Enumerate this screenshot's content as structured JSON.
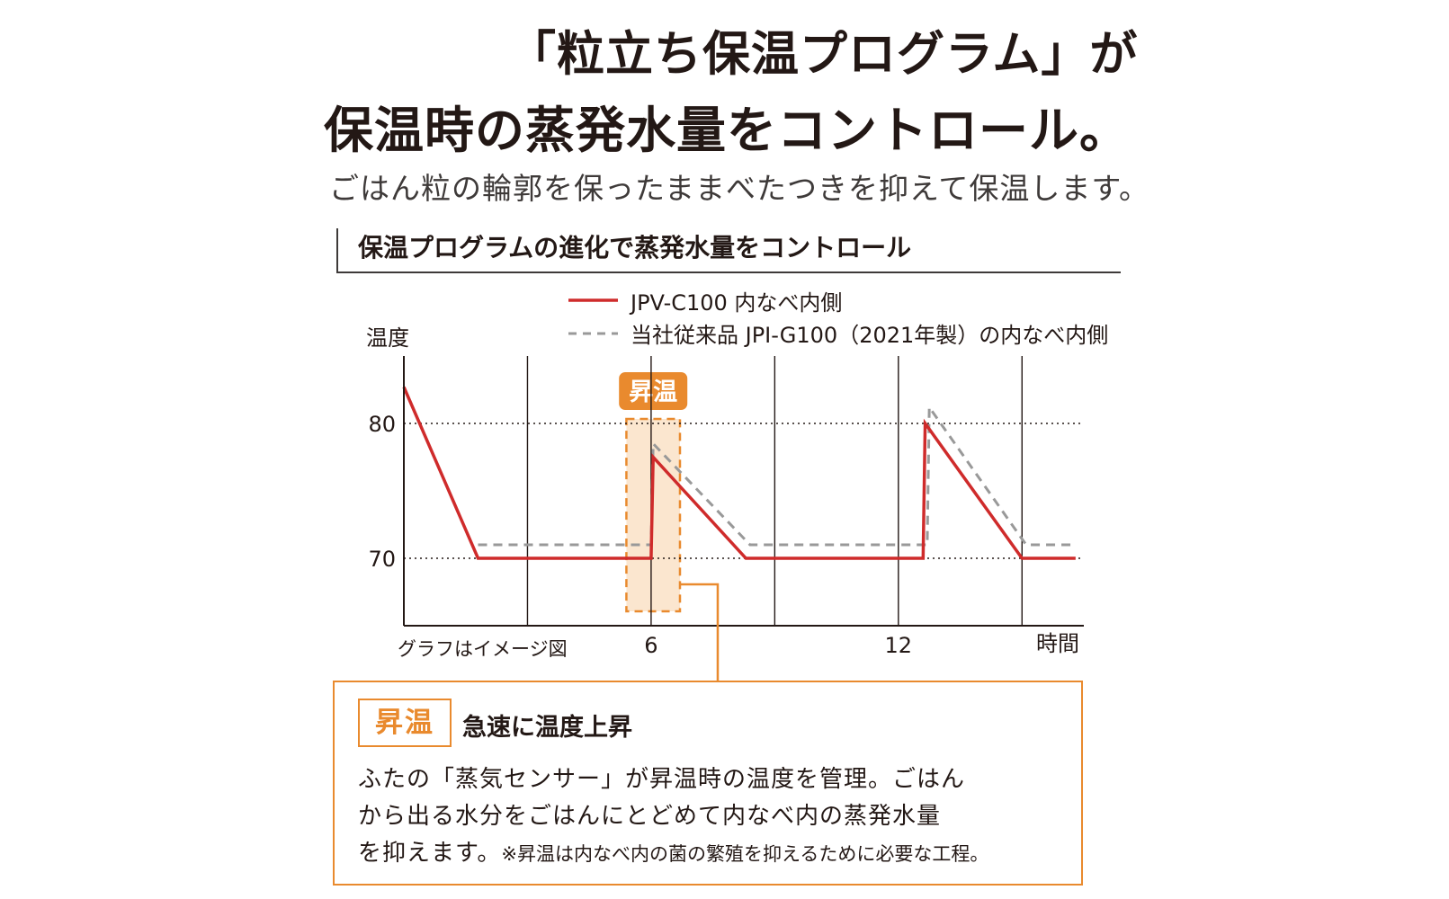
{
  "headline": {
    "line1": "「粒立ち保温プログラム」が",
    "line2": "保温時の蒸発水量をコントロール。"
  },
  "subheadline": "ごはん粒の輪郭を保ったままべたつきを抑えて保温します。",
  "section_heading": "保温プログラムの進化で蒸発水量をコントロール",
  "chart_data": {
    "type": "line",
    "ylabel": "温度",
    "xlabel": "時間",
    "note": "グラフはイメージ図",
    "yticks": [
      70,
      80
    ],
    "xticks": [
      6,
      12
    ],
    "ylim": [
      65,
      85
    ],
    "xlim": [
      0,
      16.5
    ],
    "grid_x": [
      3,
      6,
      9,
      12,
      15
    ],
    "horizontal_ref_lines": [
      70,
      80
    ],
    "highlight": {
      "label": "昇温",
      "x_start": 5.4,
      "x_end": 6.7
    },
    "series": [
      {
        "name": "JPV-C100 内なべ内側",
        "style": "solid",
        "color": "#cf2b2b",
        "x": [
          0,
          1.8,
          6.0,
          6.05,
          8.3,
          12.6,
          12.65,
          15.0,
          16.3
        ],
        "y": [
          82.7,
          70,
          70,
          77.5,
          70,
          70,
          80,
          70,
          70
        ]
      },
      {
        "name": "当社従来品 JPI-G100（2021年製）の内なべ内側",
        "style": "dashed",
        "color": "#999999",
        "x": [
          1.8,
          6.0,
          6.05,
          8.4,
          12.7,
          12.75,
          15.1,
          16.3
        ],
        "y": [
          71,
          71,
          78.5,
          71,
          71,
          81.2,
          71,
          71
        ]
      }
    ]
  },
  "callout": {
    "badge": "昇温",
    "title": "急速に温度上昇",
    "body_line1": "ふたの「蒸気センサー」が昇温時の温度を管理。ごはん",
    "body_line2": "から出る水分をごはんにとどめて内なべ内の蒸発水量",
    "body_line3": "を抑えます。",
    "note": "※昇温は内なべ内の菌の繁殖を抑えるために必要な工程。"
  },
  "colors": {
    "accent": "#e98a2e",
    "highlight_fill": "#fbe6cf",
    "axis": "#231815"
  }
}
